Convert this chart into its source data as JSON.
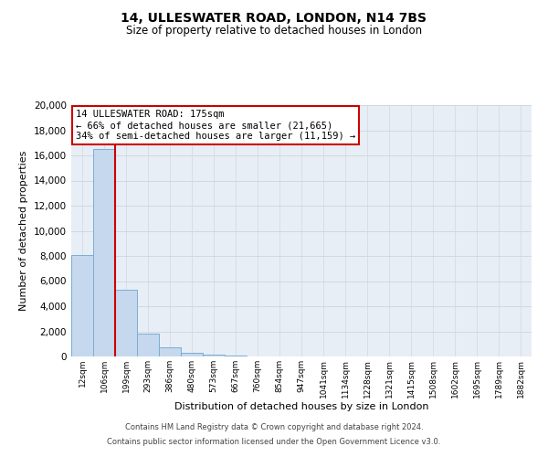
{
  "title": "14, ULLESWATER ROAD, LONDON, N14 7BS",
  "subtitle": "Size of property relative to detached houses in London",
  "xlabel": "Distribution of detached houses by size in London",
  "ylabel": "Number of detached properties",
  "bar_labels": [
    "12sqm",
    "106sqm",
    "199sqm",
    "293sqm",
    "386sqm",
    "480sqm",
    "573sqm",
    "667sqm",
    "760sqm",
    "854sqm",
    "947sqm",
    "1041sqm",
    "1134sqm",
    "1228sqm",
    "1321sqm",
    "1415sqm",
    "1508sqm",
    "1602sqm",
    "1695sqm",
    "1789sqm",
    "1882sqm"
  ],
  "bar_values": [
    8100,
    16500,
    5300,
    1800,
    700,
    300,
    150,
    100,
    0,
    0,
    0,
    0,
    0,
    0,
    0,
    0,
    0,
    0,
    0,
    0,
    0
  ],
  "bar_color": "#c5d8ed",
  "bar_edge_color": "#7aaed4",
  "vline_color": "#cc0000",
  "ylim": [
    0,
    20000
  ],
  "yticks": [
    0,
    2000,
    4000,
    6000,
    8000,
    10000,
    12000,
    14000,
    16000,
    18000,
    20000
  ],
  "annotation_title": "14 ULLESWATER ROAD: 175sqm",
  "annotation_line1": "← 66% of detached houses are smaller (21,665)",
  "annotation_line2": "34% of semi-detached houses are larger (11,159) →",
  "annotation_box_color": "#ffffff",
  "annotation_box_edge": "#cc0000",
  "footer1": "Contains HM Land Registry data © Crown copyright and database right 2024.",
  "footer2": "Contains public sector information licensed under the Open Government Licence v3.0.",
  "background_color": "#ffffff",
  "plot_bg_color": "#e8eef5",
  "grid_color": "#d0d8e0",
  "figsize": [
    6.0,
    5.0
  ],
  "dpi": 100
}
